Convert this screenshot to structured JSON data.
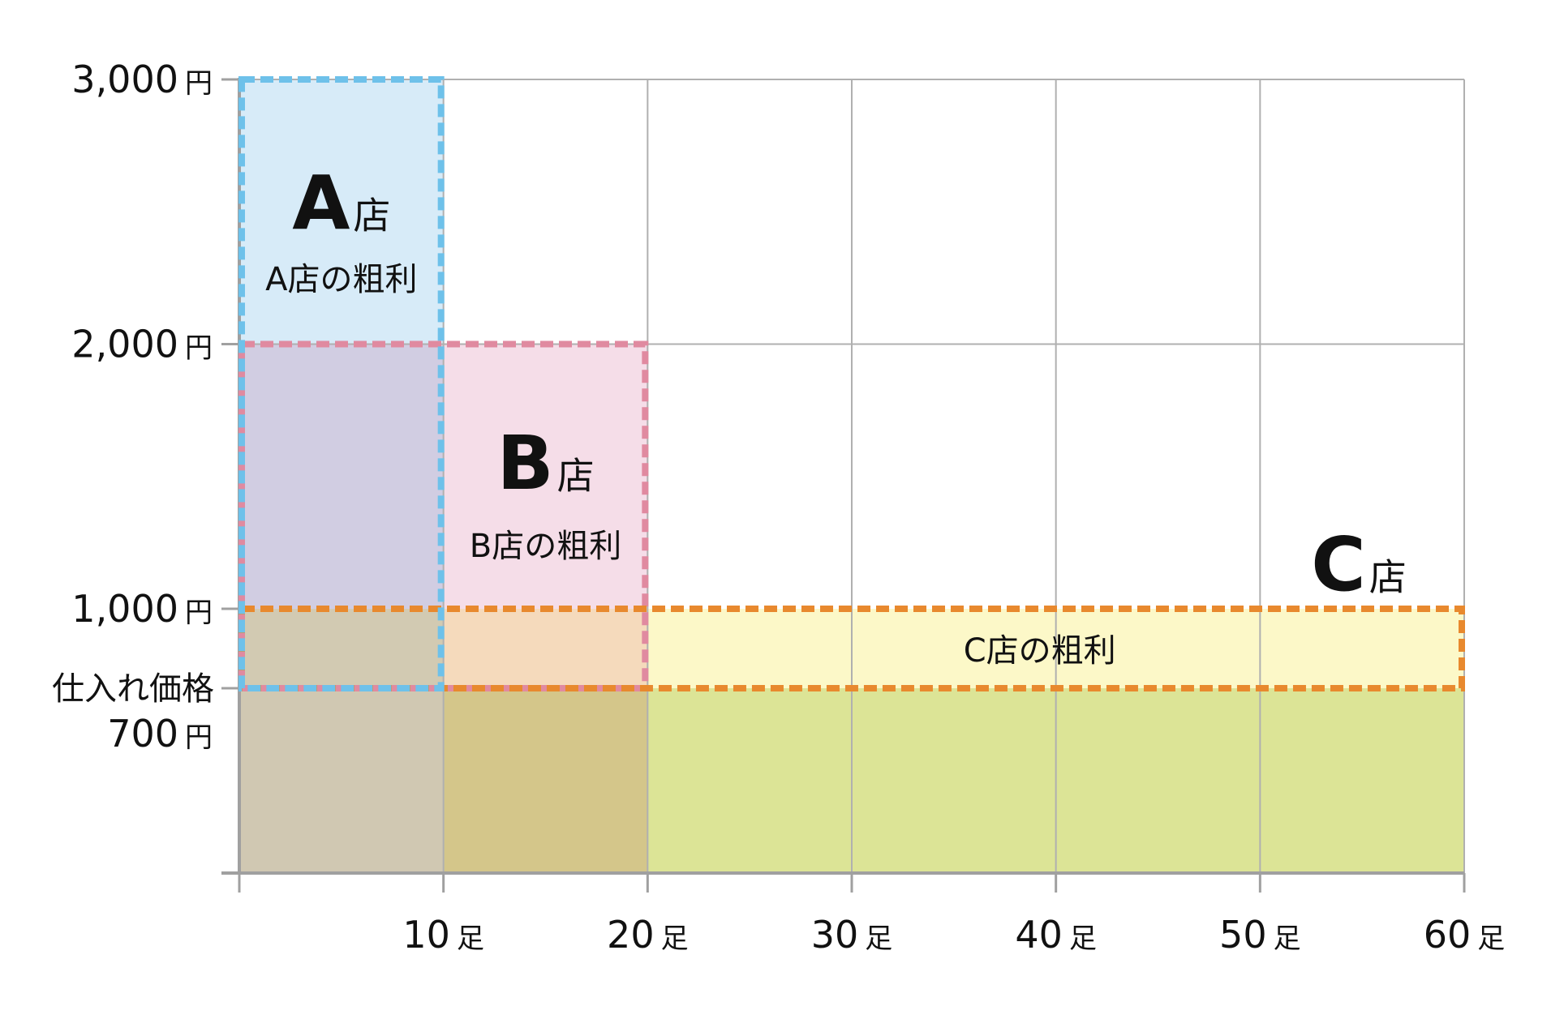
{
  "chart_data": {
    "type": "area",
    "title": "",
    "xlabel": "",
    "ylabel": "",
    "xlim": [
      0,
      60
    ],
    "ylim": [
      0,
      3000
    ],
    "grid": true,
    "x_ticks": [
      {
        "value": 10,
        "num": "10",
        "unit": "足"
      },
      {
        "value": 20,
        "num": "20",
        "unit": "足"
      },
      {
        "value": 30,
        "num": "30",
        "unit": "足"
      },
      {
        "value": 40,
        "num": "40",
        "unit": "足"
      },
      {
        "value": 50,
        "num": "50",
        "unit": "足"
      },
      {
        "value": 60,
        "num": "60",
        "unit": "足"
      }
    ],
    "y_ticks": [
      {
        "value": 3000,
        "num": "3,000",
        "unit": "円"
      },
      {
        "value": 2000,
        "num": "2,000",
        "unit": "円"
      },
      {
        "value": 1000,
        "num": "1,000",
        "unit": "円"
      }
    ],
    "cost_tick": {
      "value": 700,
      "caption": "仕入れ価格",
      "num": "700",
      "unit": "円"
    },
    "cost_price": 700,
    "series": [
      {
        "id": "A",
        "store_letter": "A",
        "store_suffix": "店",
        "profit_label": "A店の粗利",
        "price": 3000,
        "quantity": 10,
        "color": "#6ec1ea",
        "fill": "#d7ebf8"
      },
      {
        "id": "B",
        "store_letter": "B",
        "store_suffix": "店",
        "profit_label": "B店の粗利",
        "price": 2000,
        "quantity": 20,
        "color": "#e08aa0",
        "fill": "#f5dde8"
      },
      {
        "id": "C",
        "store_letter": "C",
        "store_suffix": "店",
        "profit_label": "C店の粗利",
        "price": 1000,
        "quantity": 60,
        "color": "#e8892e",
        "fill": "#fcf8c8"
      }
    ],
    "cost_region_colors": [
      "#d0c8b2",
      "#d4c68a",
      "#dce496"
    ],
    "overlap_colors": {
      "AB_profit": "#d1cde2",
      "A_C_profit": "#d2cab2",
      "B_C_profit": "#f5dabc"
    }
  }
}
